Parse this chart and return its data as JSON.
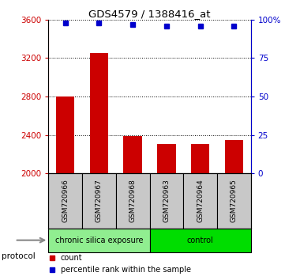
{
  "title": "GDS4579 / 1388416_at",
  "samples": [
    "GSM720966",
    "GSM720967",
    "GSM720968",
    "GSM720963",
    "GSM720964",
    "GSM720965"
  ],
  "bar_values": [
    2800,
    3250,
    2390,
    2310,
    2310,
    2350
  ],
  "percentile_values": [
    98,
    98,
    97,
    96,
    96,
    96
  ],
  "bar_color": "#cc0000",
  "dot_color": "#0000cc",
  "ylim_left": [
    2000,
    3600
  ],
  "ylim_right": [
    0,
    100
  ],
  "yticks_left": [
    2000,
    2400,
    2800,
    3200,
    3600
  ],
  "yticks_right": [
    0,
    25,
    50,
    75,
    100
  ],
  "ytick_labels_right": [
    "0",
    "25",
    "50",
    "75",
    "100%"
  ],
  "groups": [
    {
      "label": "chronic silica exposure",
      "n": 3,
      "color": "#90ee90"
    },
    {
      "label": "control",
      "n": 3,
      "color": "#00dd00"
    }
  ],
  "group_label_prefix": "protocol",
  "legend_count_label": "count",
  "legend_percentile_label": "percentile rank within the sample",
  "tick_color_left": "#cc0000",
  "tick_color_right": "#0000cc",
  "bar_bottom": 2000,
  "sample_box_color": "#c8c8c8",
  "arrow_color": "#888888"
}
